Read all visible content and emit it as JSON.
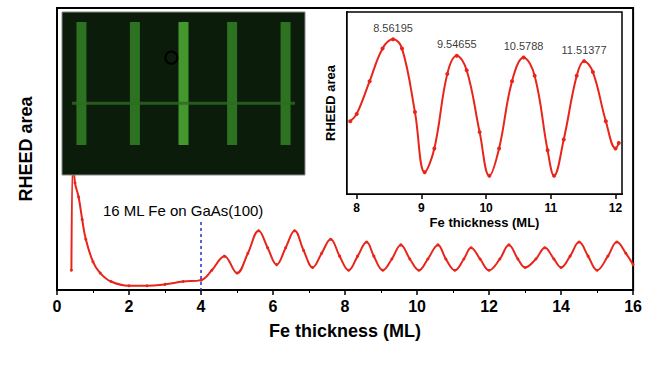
{
  "chart_data": [
    {
      "type": "line",
      "x_label": "Fe thickness (ML)",
      "y_label": "RHEED area",
      "color": "#e8251b",
      "marker": "circle",
      "x": [
        0.4,
        0.45,
        0.5,
        0.6,
        0.7,
        0.8,
        1.0,
        1.2,
        1.5,
        2.0,
        2.5,
        3.0,
        3.5,
        4.0,
        4.3,
        4.65,
        5.0,
        5.3,
        5.6,
        5.85,
        6.1,
        6.35,
        6.6,
        6.85,
        7.1,
        7.35,
        7.6,
        7.85,
        8.1,
        8.35,
        8.6,
        8.8,
        9.05,
        9.3,
        9.55,
        9.8,
        10.05,
        10.3,
        10.58,
        10.8,
        11.05,
        11.3,
        11.5,
        11.75,
        12.0,
        12.3,
        12.55,
        12.8,
        13.0,
        13.3,
        13.55,
        13.8,
        14.0,
        14.25,
        14.5,
        14.75,
        15.0,
        15.3,
        15.55,
        15.8,
        16.0
      ],
      "values": [
        7,
        46,
        38,
        33,
        25,
        18,
        10,
        6,
        3,
        1.5,
        1.5,
        2,
        3,
        3.5,
        7,
        12,
        6,
        13,
        21,
        15,
        9,
        15,
        21,
        14,
        8,
        13,
        18,
        12,
        7,
        12,
        17,
        12,
        7,
        11,
        16,
        11,
        7,
        11,
        16,
        11,
        7,
        11,
        15,
        11,
        7,
        11,
        16,
        11,
        8,
        11,
        15,
        11,
        8,
        12,
        17,
        12,
        7,
        12,
        17,
        13,
        9
      ],
      "xlim": [
        0,
        16
      ],
      "xticks": [
        0,
        2,
        4,
        6,
        8,
        10,
        12,
        14,
        16
      ],
      "ylim": [
        0,
        100
      ],
      "yticks": [],
      "tick_labels": "x",
      "annotations": [
        {
          "text": "16 ML Fe on GaAs(100)",
          "x": 4
        }
      ]
    },
    {
      "type": "line",
      "x_label": "Fe thickness (ML)",
      "y_label": "RHEED area",
      "color": "#e8251b",
      "marker": "circle",
      "x": [
        7.9,
        8.0,
        8.2,
        8.4,
        8.56195,
        8.7,
        8.9,
        9.05,
        9.2,
        9.4,
        9.54655,
        9.7,
        9.9,
        10.05,
        10.2,
        10.4,
        10.5788,
        10.75,
        10.95,
        11.05,
        11.2,
        11.4,
        11.51377,
        11.65,
        11.85,
        12.0,
        12.05
      ],
      "values": [
        40,
        44,
        62,
        80,
        85,
        80,
        45,
        12,
        25,
        66,
        76,
        68,
        34,
        10,
        25,
        62,
        75,
        65,
        24,
        10,
        30,
        65,
        73,
        67,
        40,
        25,
        28
      ],
      "xlim": [
        7.85,
        12.1
      ],
      "xticks": [
        8,
        9,
        10,
        11,
        12
      ],
      "ylim": [
        0,
        100
      ],
      "yticks": [],
      "tick_labels": "x",
      "peaks": {
        "x": [
          8.56195,
          9.54655,
          10.5788,
          11.51377
        ],
        "values": [
          85,
          76,
          75,
          73
        ]
      },
      "data_labels": true
    }
  ]
}
